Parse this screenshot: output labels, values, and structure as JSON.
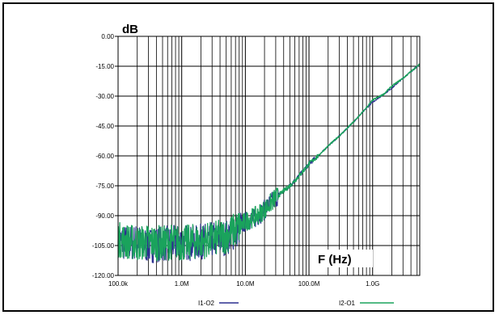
{
  "chart_data": {
    "type": "line",
    "title": "",
    "xlabel": "F (Hz)",
    "ylabel": "dB",
    "x_scale": "log",
    "xlim": [
      100000,
      5500000000
    ],
    "ylim": [
      -120,
      0
    ],
    "x_ticks": [
      {
        "value": 100000,
        "label": "100.0k"
      },
      {
        "value": 1000000,
        "label": "1.0M"
      },
      {
        "value": 10000000,
        "label": "10.0M"
      },
      {
        "value": 100000000,
        "label": "100.0M"
      },
      {
        "value": 1000000000,
        "label": "1.0G"
      }
    ],
    "y_ticks": [
      {
        "value": 0,
        "label": "0.00"
      },
      {
        "value": -15,
        "label": "-15.00"
      },
      {
        "value": -30,
        "label": "-30.00"
      },
      {
        "value": -45,
        "label": "-45.00"
      },
      {
        "value": -60,
        "label": "-60.00"
      },
      {
        "value": -75,
        "label": "-75.00"
      },
      {
        "value": -90,
        "label": "-90.00"
      },
      {
        "value": -105,
        "label": "-105.00"
      },
      {
        "value": -120,
        "label": "-120.00"
      }
    ],
    "grid": true,
    "legend_position": "bottom",
    "series": [
      {
        "name": "I1-O2",
        "color": "#2b2f8f",
        "x": [
          100000,
          150000,
          200000,
          300000,
          500000,
          700000,
          1000000,
          1500000,
          2000000,
          3000000,
          5000000,
          7000000,
          10000000,
          15000000,
          20000000,
          30000000,
          50000000,
          70000000,
          100000000,
          150000000,
          200000000,
          300000000,
          500000000,
          700000000,
          1000000000,
          1500000000,
          2000000000,
          3000000000,
          5500000000
        ],
        "y": [
          -103,
          -104,
          -103,
          -105,
          -104,
          -104,
          -103,
          -104,
          -103,
          -102,
          -101,
          -98,
          -93,
          -91,
          -87,
          -81,
          -75,
          -70,
          -64,
          -59,
          -55,
          -50,
          -43,
          -38,
          -33,
          -29,
          -26,
          -21,
          -14
        ]
      },
      {
        "name": "I2-O1",
        "color": "#1aa35c",
        "x": [
          100000,
          150000,
          200000,
          300000,
          500000,
          700000,
          1000000,
          1500000,
          2000000,
          3000000,
          5000000,
          7000000,
          10000000,
          15000000,
          20000000,
          30000000,
          50000000,
          70000000,
          100000000,
          150000000,
          200000000,
          300000000,
          500000000,
          700000000,
          1000000000,
          1500000000,
          2000000000,
          3000000000,
          5500000000
        ],
        "y": [
          -102,
          -103,
          -104,
          -103,
          -104,
          -103,
          -104,
          -103,
          -103,
          -102,
          -100,
          -97,
          -93,
          -90,
          -87,
          -81,
          -75,
          -70,
          -64,
          -59,
          -55,
          -50,
          -43,
          -38,
          -32,
          -29,
          -25,
          -21,
          -14
        ]
      }
    ]
  }
}
